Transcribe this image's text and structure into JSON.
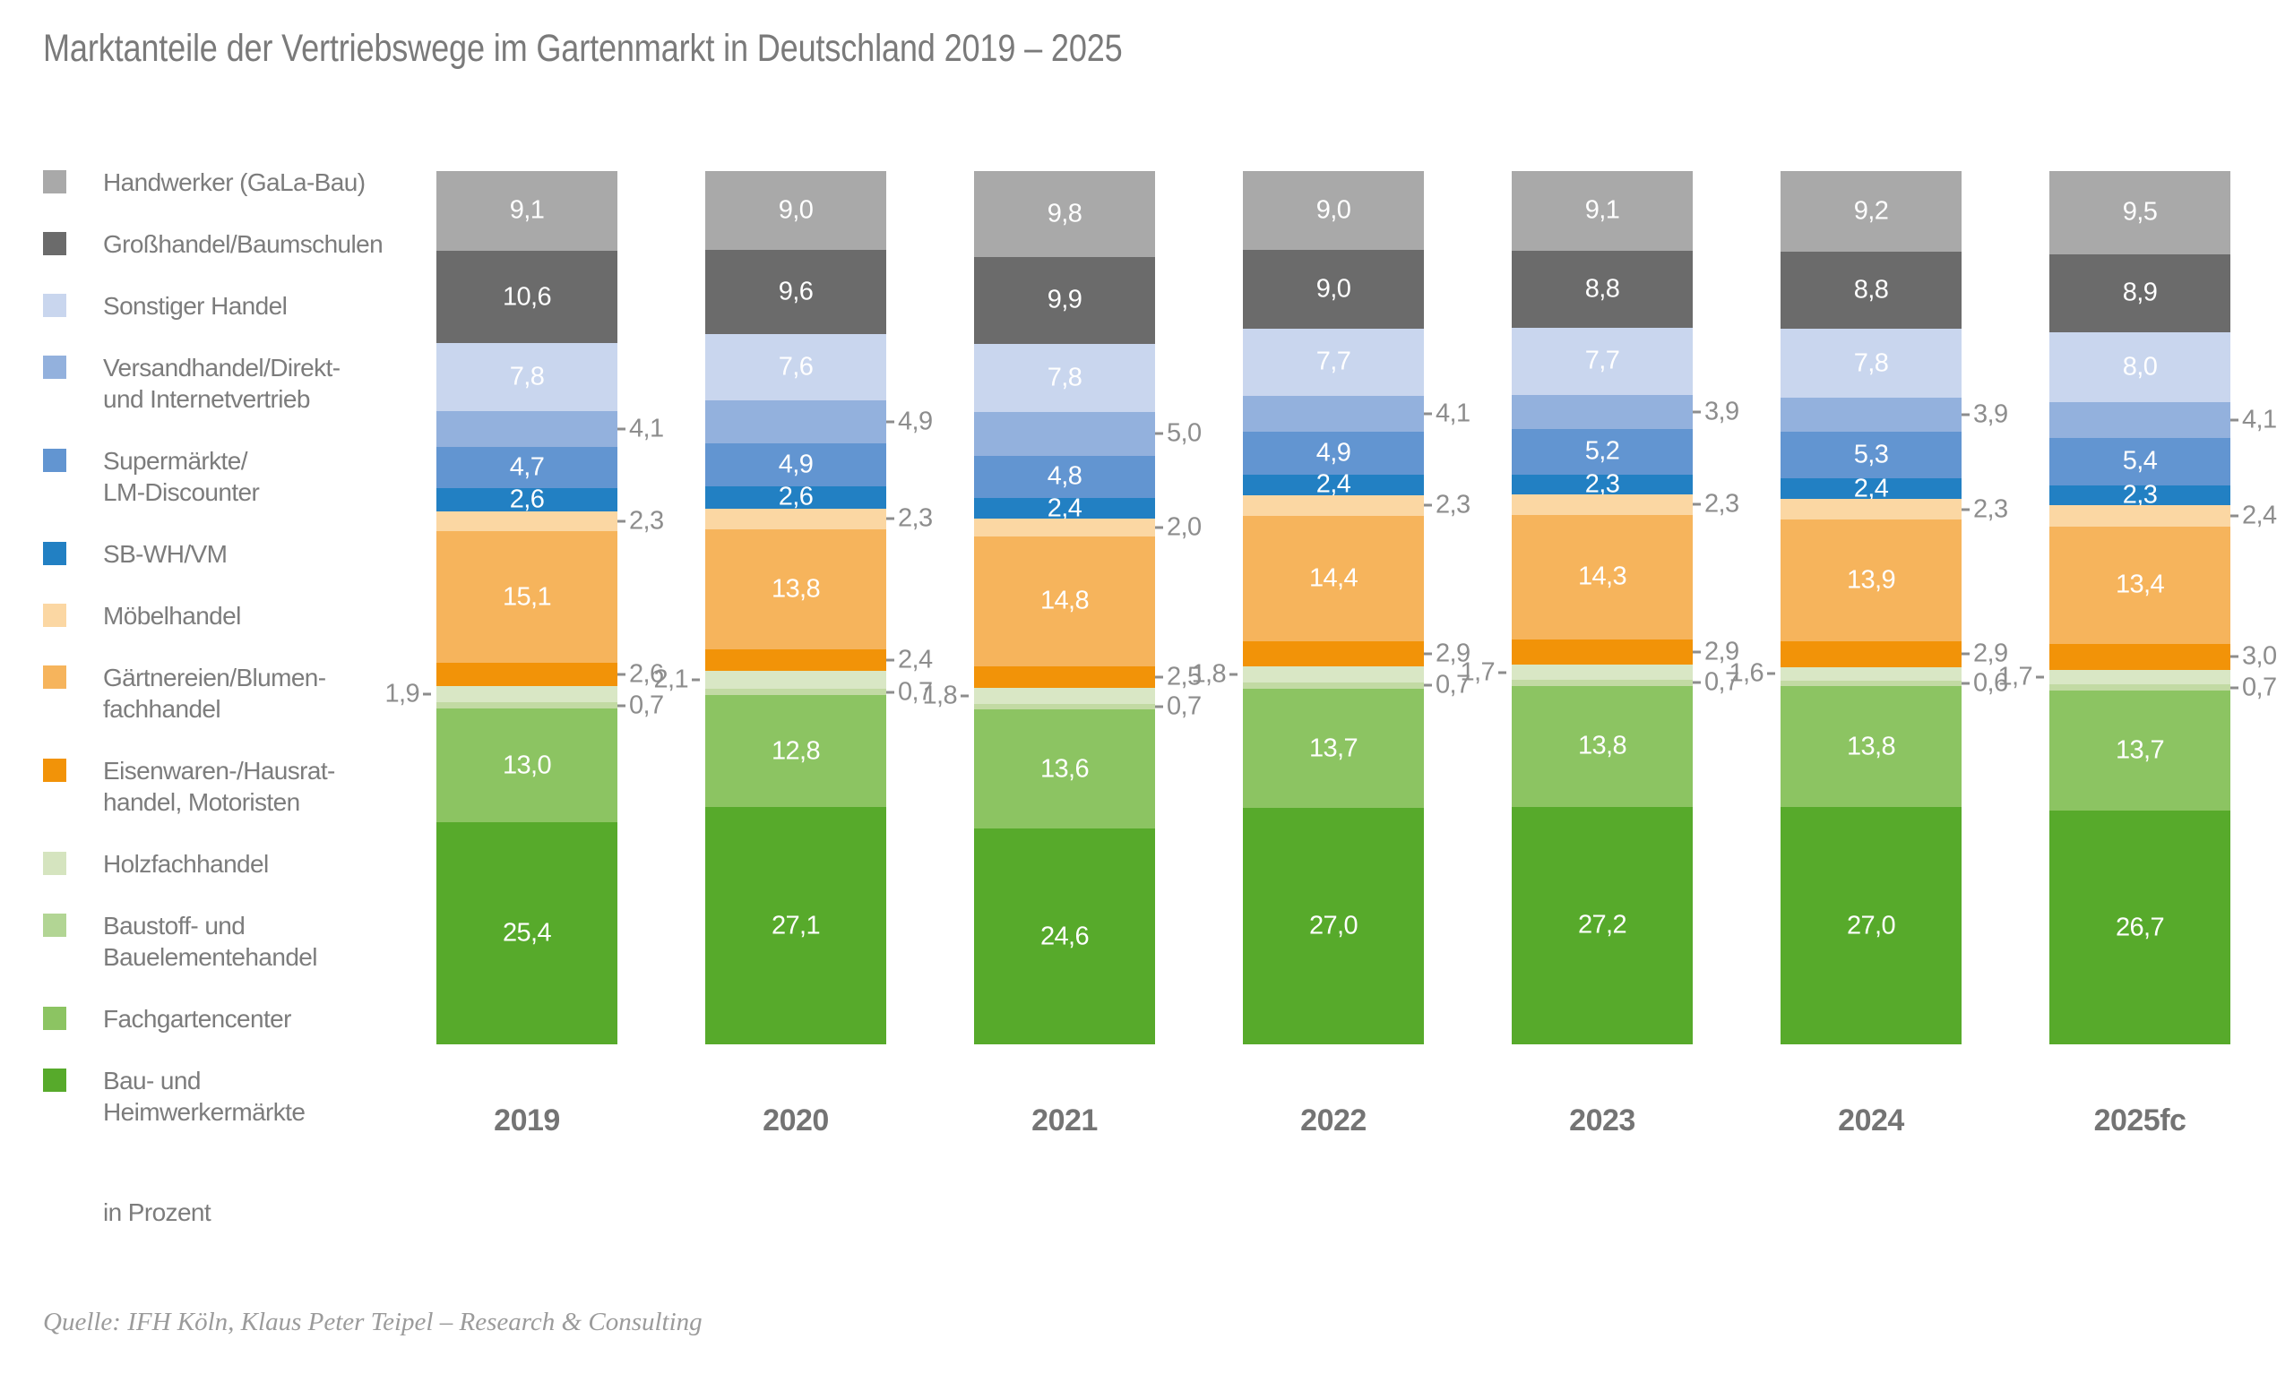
{
  "title": "Marktanteile der Vertriebswege im Gartenmarkt in Deutschland 2019 – 2025",
  "unit_note": "in Prozent",
  "source": "Quelle: IFH Köln, Klaus Peter Teipel – Research & Consulting",
  "legend": {
    "position": "left",
    "items": [
      {
        "label": "Handwerker (GaLa-Bau)",
        "lines": [
          "Handwerker (GaLa-Bau)"
        ],
        "color": "#a9a9a9"
      },
      {
        "label": "Großhandel/Baumschulen",
        "lines": [
          "Großhandel/Baumschulen"
        ],
        "color": "#6b6b6b"
      },
      {
        "label": "Sonstiger Handel",
        "lines": [
          "Sonstiger Handel"
        ],
        "color": "#c9d6ee"
      },
      {
        "label": "Versandhandel/Direkt- und Internetvertrieb",
        "lines": [
          "Versandhandel/Direkt-",
          "und Internetvertrieb"
        ],
        "color": "#93b1dd"
      },
      {
        "label": "Supermärkte/LM-Discounter",
        "lines": [
          "Supermärkte/",
          "LM-Discounter"
        ],
        "color": "#6295d1"
      },
      {
        "label": "SB-WH/VM",
        "lines": [
          "SB-WH/VM"
        ],
        "color": "#2280c3"
      },
      {
        "label": "Möbelhandel",
        "lines": [
          "Möbelhandel"
        ],
        "color": "#fbd7a3"
      },
      {
        "label": "Gärtnereien/Blumenfachhandel",
        "lines": [
          "Gärtnereien/Blumen-",
          "fachhandel"
        ],
        "color": "#f6b45c"
      },
      {
        "label": "Eisenwaren-/Hausrathandel, Motoristen",
        "lines": [
          "Eisenwaren-/Hausrat-",
          "handel, Motoristen"
        ],
        "color": "#f29308"
      },
      {
        "label": "Holzfachhandel",
        "lines": [
          "Holzfachhandel"
        ],
        "color": "#d5e4bf"
      },
      {
        "label": "Baustoff- und Bauelementehandel",
        "lines": [
          "Baustoff- und",
          "Bauelementehandel"
        ],
        "color": "#b2d594"
      },
      {
        "label": "Fachgartencenter",
        "lines": [
          "Fachgartencenter"
        ],
        "color": "#8cc462"
      },
      {
        "label": "Bau- und Heimwerkermärkte",
        "lines": [
          "Bau- und",
          "Heimwerkermärkte"
        ],
        "color": "#57aa2b"
      }
    ]
  },
  "chart_data": {
    "type": "bar",
    "subtype": "stacked-100-percent",
    "unit": "percent",
    "grid": false,
    "legend_position": "left",
    "ylim": [
      0,
      100
    ],
    "value_decimal_separator": ",",
    "categories": [
      "2019",
      "2020",
      "2021",
      "2022",
      "2023",
      "2024",
      "2025fc"
    ],
    "series": [
      {
        "name": "Handwerker (GaLa-Bau)",
        "color": "#a9a9a9",
        "label_mode": "inside",
        "values": [
          9.1,
          9.0,
          9.8,
          9.0,
          9.1,
          9.2,
          9.5
        ]
      },
      {
        "name": "Großhandel/Baumschulen",
        "color": "#6b6b6b",
        "label_mode": "inside",
        "values": [
          10.6,
          9.6,
          9.9,
          9.0,
          8.8,
          8.8,
          8.9
        ]
      },
      {
        "name": "Sonstiger Handel",
        "color": "#c9d6ee",
        "label_mode": "inside",
        "values": [
          7.8,
          7.6,
          7.8,
          7.7,
          7.7,
          7.8,
          8.0
        ]
      },
      {
        "name": "Versandhandel/Direkt- und Internetvertrieb",
        "color": "#93b1dd",
        "label_mode": "right",
        "values": [
          4.1,
          4.9,
          5.0,
          4.1,
          3.9,
          3.9,
          4.1
        ]
      },
      {
        "name": "Supermärkte/LM-Discounter",
        "color": "#6295d1",
        "label_mode": "inside",
        "values": [
          4.7,
          4.9,
          4.8,
          4.9,
          5.2,
          5.3,
          5.4
        ]
      },
      {
        "name": "SB-WH/VM",
        "color": "#2280c3",
        "label_mode": "inside",
        "values": [
          2.6,
          2.6,
          2.4,
          2.4,
          2.3,
          2.4,
          2.3
        ]
      },
      {
        "name": "Möbelhandel",
        "color": "#fbd7a3",
        "label_mode": "right",
        "values": [
          2.3,
          2.3,
          2.0,
          2.3,
          2.3,
          2.3,
          2.4
        ]
      },
      {
        "name": "Gärtnereien/Blumenfachhandel",
        "color": "#f6b45c",
        "label_mode": "inside",
        "values": [
          15.1,
          13.8,
          14.8,
          14.4,
          14.3,
          13.9,
          13.4
        ]
      },
      {
        "name": "Eisenwaren-/Hausrathandel, Motoristen",
        "color": "#f29308",
        "label_mode": "right",
        "values": [
          2.6,
          2.4,
          2.5,
          2.9,
          2.9,
          2.9,
          3.0
        ]
      },
      {
        "name": "Baustoff- und Bauelementehandel",
        "color": "#d9e7c5",
        "label_mode": "left",
        "values": [
          1.9,
          2.1,
          1.8,
          1.8,
          1.7,
          1.6,
          1.7
        ]
      },
      {
        "name": "Holzfachhandel",
        "color": "#c2daa3",
        "label_mode": "right",
        "values": [
          0.7,
          0.7,
          0.7,
          0.7,
          0.7,
          0.6,
          0.7
        ]
      },
      {
        "name": "Fachgartencenter",
        "color": "#8cc462",
        "label_mode": "inside",
        "values": [
          13.0,
          12.8,
          13.6,
          13.7,
          13.8,
          13.8,
          13.7
        ]
      },
      {
        "name": "Bau- und Heimwerkermärkte",
        "color": "#57aa2b",
        "label_mode": "inside",
        "values": [
          25.4,
          27.1,
          24.6,
          27.0,
          27.2,
          27.0,
          26.7
        ]
      }
    ]
  }
}
